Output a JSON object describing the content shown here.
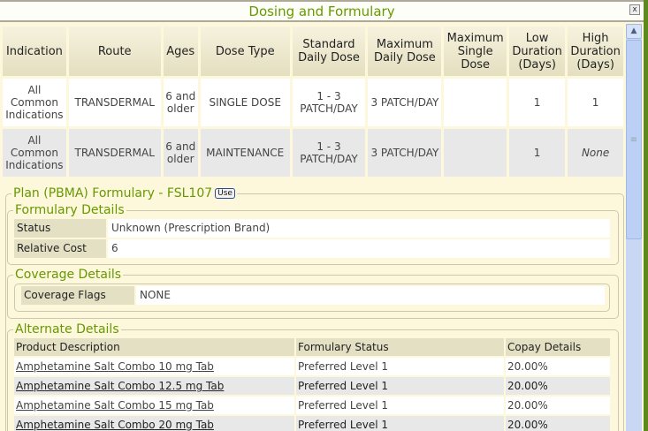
{
  "window": {
    "title": "Dosing and Formulary",
    "close_label": "x"
  },
  "dosing": {
    "headers": [
      "Indication",
      "Route",
      "Ages",
      "Dose Type",
      "Standard Daily Dose",
      "Maximum Daily Dose",
      "Maximum Single Dose",
      "Low Duration (Days)",
      "High Duration (Days)"
    ],
    "rows": [
      [
        "All Common Indications",
        "TRANSDERMAL",
        "6 and older",
        "SINGLE DOSE",
        "1 - 3 PATCH/DAY",
        "3 PATCH/DAY",
        "",
        "1",
        "1"
      ],
      [
        "All Common Indications",
        "TRANSDERMAL",
        "6 and older",
        "MAINTENANCE",
        "1 - 3 PATCH/DAY",
        "3 PATCH/DAY",
        "",
        "1",
        "None"
      ]
    ]
  },
  "plan": {
    "title": "Plan (PBMA) Formulary - FSL107",
    "use_label": "Use",
    "formulary_details": {
      "title": "Formulary Details",
      "status_label": "Status",
      "status": "Unknown (Prescription Brand)",
      "cost_label": "Relative Cost",
      "cost": "6"
    },
    "coverage_details": {
      "title": "Coverage Details",
      "flags_label": "Coverage Flags",
      "flags": "NONE"
    },
    "alternate_details": {
      "title": "Alternate Details",
      "headers": [
        "Product Description",
        "Formulary Status",
        "Copay Details"
      ],
      "rows": [
        [
          "Amphetamine Salt Combo 10 mg Tab",
          "Preferred Level 1",
          "20.00%"
        ],
        [
          "Amphetamine Salt Combo 12.5 mg Tab",
          "Preferred Level 1",
          "20.00%"
        ],
        [
          "Amphetamine Salt Combo 15 mg Tab",
          "Preferred Level 1",
          "20.00%"
        ],
        [
          "Amphetamine Salt Combo 20 mg Tab",
          "Preferred Level 1",
          "20.00%"
        ]
      ]
    }
  }
}
